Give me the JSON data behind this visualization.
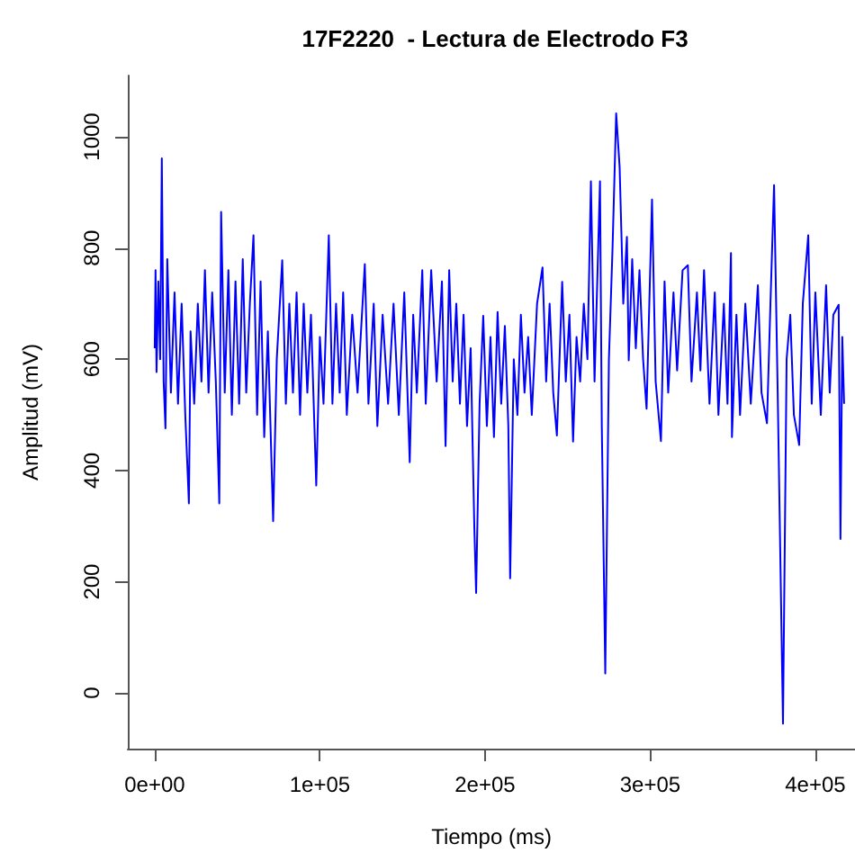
{
  "chart_data": {
    "type": "line",
    "title": "17F2220  - Lectura de Electrodo F3",
    "xlabel": "Tiempo (ms)",
    "ylabel": "Amplitud (mV)",
    "xlim": [
      -16300,
      424000
    ],
    "ylim": [
      -100,
      1110
    ],
    "xticks": [
      {
        "value": 0,
        "label": "0e+00"
      },
      {
        "value": 100000,
        "label": "1e+05"
      },
      {
        "value": 200000,
        "label": "2e+05"
      },
      {
        "value": 300000,
        "label": "3e+05"
      },
      {
        "value": 400000,
        "label": "4e+05"
      }
    ],
    "yticks": [
      0,
      200,
      400,
      600,
      800,
      1000
    ],
    "grid": false,
    "marker": "none",
    "line_style": "solid",
    "series": [
      {
        "color": "#0000ff",
        "x": [
          0,
          500,
          1100,
          2200,
          3300,
          4300,
          5400,
          6500,
          7600,
          9800,
          12000,
          14100,
          16300,
          18500,
          20700,
          21700,
          23900,
          26100,
          28300,
          30400,
          32600,
          34800,
          37000,
          39100,
          40200,
          42400,
          44600,
          46700,
          48900,
          51100,
          53300,
          55400,
          57600,
          59800,
          62000,
          64100,
          66300,
          68500,
          71700,
          73900,
          77200,
          79400,
          81500,
          83700,
          85900,
          88000,
          90200,
          92400,
          94600,
          97800,
          100000,
          102200,
          105400,
          107600,
          109800,
          112000,
          114100,
          116300,
          119600,
          122800,
          127200,
          129400,
          132600,
          134800,
          138000,
          141300,
          144600,
          147800,
          151100,
          154400,
          156500,
          158700,
          162000,
          164100,
          167400,
          170700,
          173900,
          176100,
          178300,
          180400,
          182600,
          184800,
          187000,
          189100,
          191300,
          193500,
          194600,
          196700,
          198900,
          201100,
          203300,
          205400,
          207600,
          209800,
          212000,
          214100,
          215200,
          217400,
          219600,
          221700,
          223900,
          226100,
          228300,
          231500,
          234800,
          237000,
          239100,
          241300,
          243500,
          246700,
          248900,
          251100,
          253300,
          255400,
          257600,
          259800,
          262000,
          264100,
          266300,
          269600,
          270700,
          272800,
          275000,
          277200,
          279400,
          281500,
          283700,
          285900,
          287000,
          289100,
          291300,
          293500,
          295700,
          297800,
          301100,
          303300,
          306500,
          308700,
          310900,
          314100,
          316300,
          319600,
          322800,
          325000,
          328300,
          330400,
          332600,
          335900,
          339100,
          341300,
          344600,
          346800,
          348900,
          349500,
          352200,
          354400,
          357600,
          360900,
          365200,
          367400,
          370700,
          372800,
          375000,
          377200,
          380400,
          382600,
          384800,
          387000,
          390200,
          392400,
          395700,
          397800,
          400000,
          403300,
          406500,
          408700,
          410900,
          414100,
          415200,
          416300,
          417400
        ],
        "values": [
          620,
          760,
          577,
          740,
          600,
          961,
          560,
          476,
          780,
          540,
          720,
          520,
          700,
          500,
          341,
          650,
          520,
          700,
          560,
          760,
          540,
          720,
          560,
          341,
          865,
          540,
          760,
          500,
          740,
          520,
          780,
          540,
          700,
          823,
          500,
          740,
          460,
          650,
          309,
          600,
          778,
          520,
          700,
          540,
          720,
          500,
          700,
          540,
          680,
          373,
          640,
          520,
          823,
          520,
          700,
          540,
          720,
          500,
          680,
          540,
          771,
          520,
          700,
          480,
          680,
          520,
          700,
          500,
          720,
          415,
          680,
          540,
          760,
          520,
          760,
          560,
          740,
          444,
          760,
          560,
          700,
          520,
          680,
          480,
          620,
          300,
          180,
          520,
          678,
          480,
          640,
          460,
          685,
          520,
          660,
          480,
          206,
          600,
          500,
          680,
          540,
          640,
          500,
          700,
          765,
          560,
          700,
          540,
          463,
          739,
          560,
          680,
          452,
          640,
          560,
          700,
          600,
          920,
          560,
          920,
          480,
          35,
          600,
          800,
          1042,
          945,
          700,
          820,
          598,
          780,
          620,
          760,
          600,
          511,
          887,
          560,
          453,
          740,
          540,
          720,
          580,
          760,
          769,
          560,
          720,
          580,
          760,
          520,
          720,
          500,
          700,
          520,
          791,
          460,
          680,
          500,
          700,
          520,
          733,
          540,
          485,
          700,
          913,
          540,
          -55,
          600,
          680,
          500,
          446,
          700,
          823,
          520,
          720,
          500,
          733,
          540,
          680,
          698,
          277,
          640,
          520
        ]
      }
    ]
  }
}
